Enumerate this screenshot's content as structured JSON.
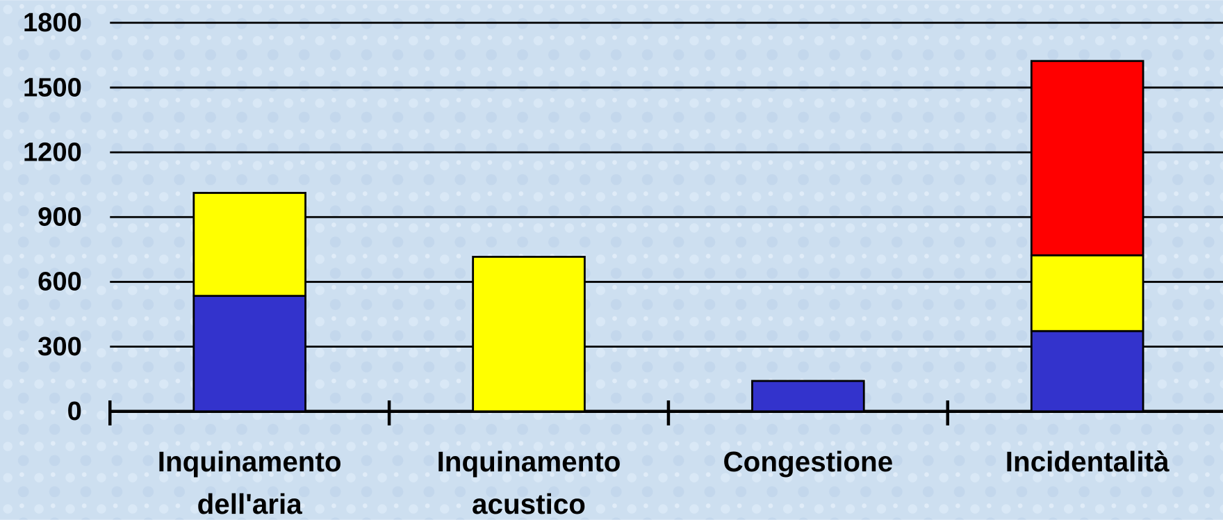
{
  "chart_data": {
    "type": "stacked-bar",
    "categories": [
      "Inquinamento dell'aria",
      "Inquinamento acustico",
      "Congestione",
      "Incidentalità"
    ],
    "series": [
      {
        "color": "#3333cc",
        "values": [
          535,
          0,
          141,
          372
        ]
      },
      {
        "color": "#ffff00",
        "values": [
          477,
          716,
          0,
          351
        ]
      },
      {
        "color": "#ff0000",
        "values": [
          0,
          0,
          0,
          900
        ]
      }
    ],
    "ylim": [
      0,
      1800
    ],
    "yticks": [
      0,
      300,
      600,
      900,
      1200,
      1500,
      1800
    ],
    "grid": true
  }
}
